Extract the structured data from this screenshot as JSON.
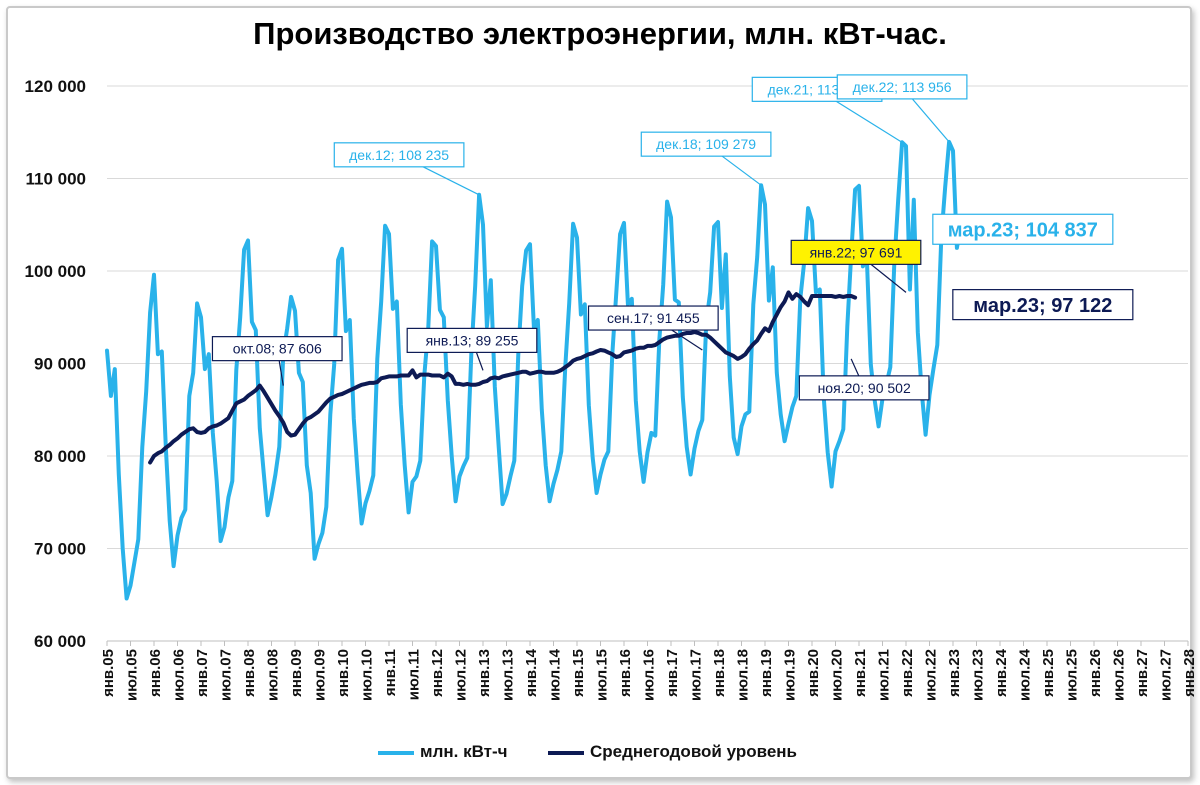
{
  "chart_data": {
    "type": "line",
    "title": "Производство электроэнергии, млн. кВт-час.",
    "ylim": [
      60000,
      120000
    ],
    "y_ticks": [
      60000,
      70000,
      80000,
      90000,
      100000,
      110000,
      120000
    ],
    "y_tick_labels": [
      "60 000",
      "70 000",
      "80 000",
      "90 000",
      "100 000",
      "110 000",
      "120 000"
    ],
    "x_tick_labels": [
      "янв.05",
      "июл.05",
      "янв.06",
      "июл.06",
      "янв.07",
      "июл.07",
      "янв.08",
      "июл.08",
      "янв.09",
      "июл.09",
      "янв.10",
      "июл.10",
      "янв.11",
      "июл.11",
      "янв.12",
      "июл.12",
      "янв.13",
      "июл.13",
      "янв.14",
      "июл.14",
      "янв.15",
      "июл.15",
      "янв.16",
      "июл.16",
      "янв.17",
      "июл.17",
      "янв.18",
      "июл.18",
      "янв.19",
      "июл.19",
      "янв.20",
      "июл.20",
      "янв.21",
      "июл.21",
      "янв.22",
      "июл.22",
      "янв.23",
      "июл.23",
      "янв.24",
      "июл.24",
      "янв.25",
      "июл.25",
      "янв.26",
      "июл.26",
      "янв.27",
      "июл.27",
      "янв.28"
    ],
    "x_range": [
      "янв.05",
      "янв.28"
    ],
    "grid": "horizontal",
    "legend_position": "bottom",
    "colors": {
      "monthly": "#29b2ea",
      "annual": "#0d1a54",
      "highlight": "#fff200"
    },
    "series": [
      {
        "name": "млн. кВт-ч",
        "color": "#29b2ea",
        "start": "янв.05",
        "frequency": "monthly",
        "values": [
          91400,
          86500,
          89400,
          78000,
          70000,
          64600,
          66000,
          68500,
          71000,
          81000,
          87000,
          95500,
          99600,
          91000,
          91300,
          81000,
          73000,
          68100,
          71400,
          73300,
          74200,
          86500,
          89000,
          96500,
          95000,
          89400,
          91000,
          82500,
          77300,
          70800,
          72300,
          75500,
          77300,
          89300,
          95000,
          102300,
          103300,
          94500,
          93600,
          83000,
          78200,
          73600,
          75600,
          78000,
          81000,
          91000,
          93800,
          97200,
          95700,
          89000,
          88000,
          79000,
          76000,
          68900,
          70500,
          71700,
          74500,
          84500,
          89900,
          101200,
          102400,
          93500,
          94700,
          84000,
          78000,
          72700,
          74900,
          76200,
          77900,
          90500,
          96700,
          104900,
          104000,
          95900,
          96700,
          85600,
          79000,
          73900,
          77200,
          77800,
          79500,
          88700,
          93700,
          103200,
          102700,
          95800,
          95000,
          86000,
          80000,
          75100,
          77800,
          78900,
          79800,
          91000,
          98400,
          108235,
          105000,
          94000,
          99000,
          87500,
          81000,
          74800,
          75900,
          77800,
          79500,
          91000,
          98400,
          102200,
          102900,
          93900,
          94700,
          85000,
          79000,
          75100,
          77000,
          78500,
          80500,
          89700,
          96500,
          105100,
          103600,
          95300,
          96400,
          85500,
          79800,
          76000,
          78000,
          79600,
          80500,
          91000,
          97500,
          104000,
          105200,
          96400,
          97000,
          86000,
          80500,
          77200,
          80400,
          82500,
          82200,
          92500,
          98500,
          107500,
          105800,
          96900,
          96600,
          86400,
          81000,
          78000,
          80800,
          82700,
          83900,
          94500,
          97700,
          104800,
          105300,
          96000,
          101800,
          88600,
          82000,
          80200,
          83200,
          84500,
          84800,
          96400,
          101500,
          109279,
          107200,
          96800,
          100400,
          89000,
          84500,
          81600,
          83500,
          85300,
          86500,
          97000,
          101000,
          106800,
          105400,
          97700,
          98000,
          86400,
          80400,
          76700,
          80500,
          81600,
          82900,
          94000,
          101800,
          108800,
          109200,
          100500,
          101500,
          89900,
          86000,
          83200,
          86200,
          87800,
          89600,
          100800,
          107700,
          113909,
          113500,
          98000,
          107700,
          93400,
          87000,
          82300,
          86600,
          89400,
          92000,
          103600,
          109100,
          113956,
          113000,
          102500,
          104837
        ]
      },
      {
        "name": "Среднегодовой уровень",
        "color": "#0d1a54",
        "start": "дек.05",
        "frequency": "monthly",
        "values": [
          79300,
          80000,
          80300,
          80500,
          80900,
          81200,
          81600,
          81900,
          82300,
          82600,
          82900,
          83000,
          82600,
          82500,
          82600,
          83000,
          83200,
          83300,
          83500,
          83800,
          84100,
          84900,
          85700,
          85900,
          86100,
          86500,
          86800,
          87100,
          87606,
          87000,
          86300,
          85600,
          84900,
          84300,
          83600,
          82600,
          82200,
          82300,
          82900,
          83500,
          84000,
          84200,
          84500,
          84800,
          85300,
          85800,
          86200,
          86400,
          86600,
          86700,
          86900,
          87100,
          87300,
          87500,
          87700,
          87800,
          87900,
          87900,
          88000,
          88400,
          88500,
          88600,
          88600,
          88600,
          88700,
          88700,
          88700,
          89255,
          88500,
          88800,
          88800,
          88800,
          88700,
          88700,
          88700,
          88500,
          88900,
          88600,
          87800,
          87800,
          87700,
          87800,
          87700,
          87700,
          87800,
          88000,
          88100,
          88400,
          88500,
          88400,
          88600,
          88700,
          88800,
          88900,
          89000,
          89100,
          89100,
          88900,
          89000,
          89100,
          89100,
          89000,
          89000,
          89000,
          89100,
          89300,
          89600,
          89900,
          90300,
          90500,
          90600,
          90800,
          91000,
          91100,
          91300,
          91455,
          91400,
          91200,
          91000,
          90700,
          90800,
          91200,
          91300,
          91400,
          91600,
          91700,
          91700,
          91900,
          91900,
          92000,
          92300,
          92600,
          92800,
          92900,
          93000,
          93000,
          93200,
          93300,
          93300,
          93400,
          93300,
          93100,
          93100,
          92800,
          92400,
          92000,
          91600,
          91200,
          91000,
          90800,
          90502,
          90700,
          91000,
          91600,
          92100,
          92500,
          93200,
          93800,
          93500,
          94500,
          95300,
          96100,
          96700,
          97691,
          97000,
          97500,
          97200,
          96700,
          96300,
          97300,
          97300,
          97300,
          97300,
          97300,
          97300,
          97200,
          97300,
          97200,
          97300,
          97300,
          97122
        ]
      }
    ],
    "annotations": [
      {
        "label": "дек.12; 108 235",
        "series": "млн. кВт-ч",
        "x": "дек.12",
        "y": 108235
      },
      {
        "label": "дек.18; 109 279",
        "series": "млн. кВт-ч",
        "x": "дек.18",
        "y": 109279
      },
      {
        "label": "дек.21; 113 909",
        "series": "млн. кВт-ч",
        "x": "дек.21",
        "y": 113909
      },
      {
        "label": "дек.22; 113 956",
        "series": "млн. кВт-ч",
        "x": "дек.22",
        "y": 113956
      },
      {
        "label": "мар.23; 104 837",
        "series": "млн. кВт-ч",
        "x": "мар.23",
        "y": 104837
      },
      {
        "label": "окт.08;  87 606",
        "series": "Среднегодовой уровень",
        "x": "окт.08",
        "y": 87606
      },
      {
        "label": "янв.13;  89 255",
        "series": "Среднегодовой уровень",
        "x": "янв.13",
        "y": 89255
      },
      {
        "label": "сен.17;  91 455",
        "series": "Среднегодовой уровень",
        "x": "сен.17",
        "y": 91455
      },
      {
        "label": "ноя.20;  90 502",
        "series": "Среднегодовой уровень",
        "x": "ноя.20",
        "y": 90502
      },
      {
        "label": "янв.22;  97 691",
        "series": "Среднегодовой уровень",
        "x": "янв.22",
        "y": 97691
      },
      {
        "label": "мар.23;  97 122",
        "series": "Среднегодовой уровень",
        "x": "мар.23",
        "y": 97122
      }
    ]
  }
}
